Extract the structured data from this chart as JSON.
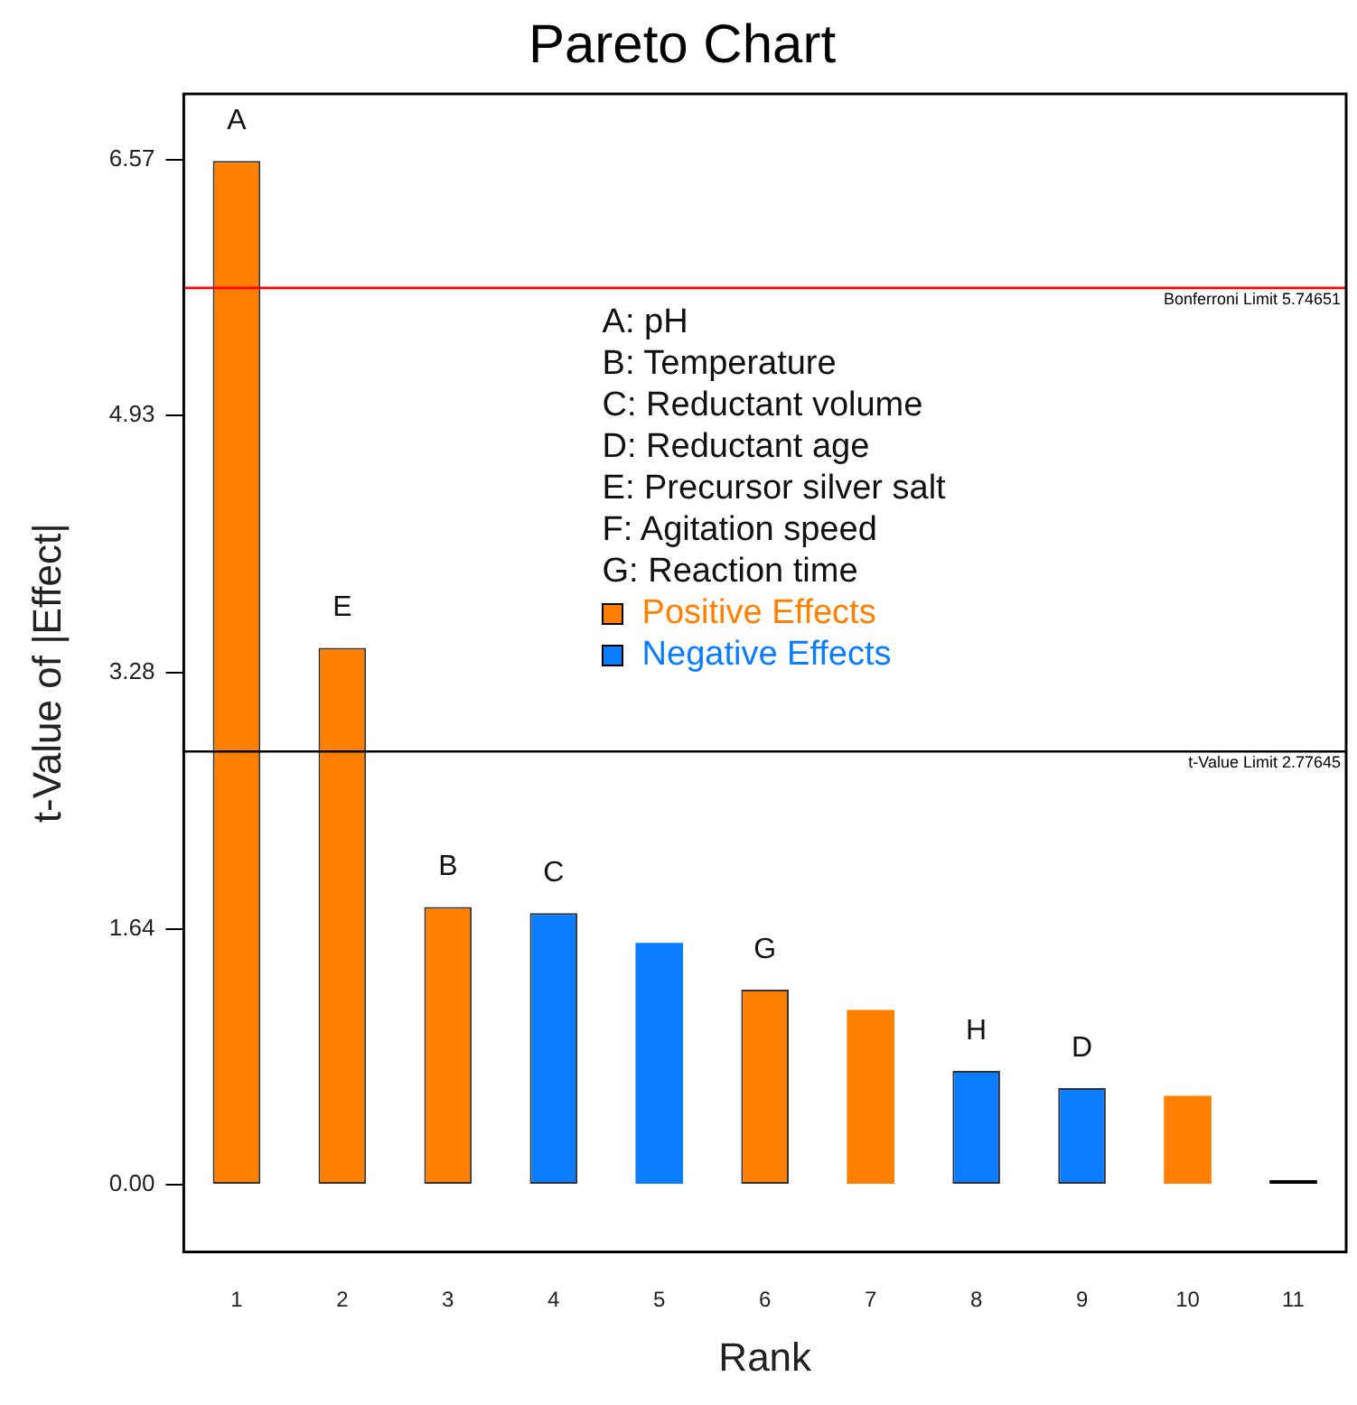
{
  "chart_data": {
    "type": "bar",
    "title": "Pareto Chart",
    "xlabel": "Rank",
    "ylabel": "t-Value of |Effect|",
    "categories": [
      "1",
      "2",
      "3",
      "4",
      "5",
      "6",
      "7",
      "8",
      "9",
      "10",
      "11"
    ],
    "stacked": true,
    "series": [
      {
        "name": "Positive Effects",
        "color": "#ff8000",
        "values": [
          6.56,
          3.44,
          1.78,
          null,
          null,
          1.25,
          1.12,
          null,
          null,
          0.57,
          null
        ]
      },
      {
        "name": "Negative Effects",
        "color": "#0a7cff",
        "values": [
          null,
          null,
          null,
          1.74,
          1.55,
          null,
          null,
          0.73,
          0.62,
          null,
          null
        ]
      },
      {
        "color": "#000000",
        "values": [
          null,
          null,
          null,
          null,
          null,
          null,
          null,
          null,
          null,
          null,
          0.03
        ]
      }
    ],
    "ylim": [
      -0.43,
      6.99
    ],
    "yticks": [
      {
        "value": 0,
        "label": "0.00"
      },
      1.64,
      3.28,
      4.93,
      6.57
    ],
    "ref_lines": [
      {
        "axis": "y",
        "value": 5.74651,
        "label": "Bonferroni Limit 5.74651",
        "color": "#ff0000"
      },
      {
        "axis": "y",
        "value": 2.77645,
        "label": "t-Value Limit 2.77645",
        "color": "#000000"
      }
    ],
    "legend": "top",
    "annotations": [
      "A: pH",
      "B:  Temperature",
      "C: Reductant volume",
      "D: Reductant age",
      "E: Precursor silver salt",
      "F: Agitation speed",
      "G: Reaction time",
      {
        "text": "A",
        "x": "1",
        "y": 6.56
      },
      {
        "text": "E",
        "x": "2",
        "y": 3.44
      },
      {
        "text": "B",
        "x": "3",
        "y": 1.78
      },
      {
        "text": "C",
        "x": "4",
        "y": 1.74
      },
      {
        "text": "G",
        "x": "6",
        "y": 1.25
      },
      {
        "text": "H",
        "x": "8",
        "y": 0.73
      },
      {
        "text": "D",
        "x": "9",
        "y": 0.62
      }
    ]
  }
}
